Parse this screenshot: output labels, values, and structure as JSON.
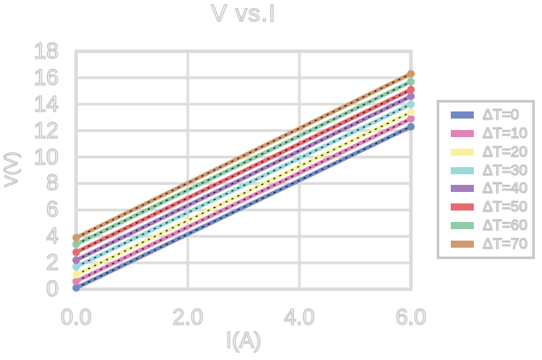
{
  "chart_data": {
    "type": "line",
    "title": "V vs.I",
    "xlabel": "I(A)",
    "ylabel": "V(V)",
    "xlim": [
      0,
      6
    ],
    "ylim": [
      0,
      18
    ],
    "x": [
      0,
      6
    ],
    "xticks": [
      {
        "value": 0,
        "label": "0.0"
      },
      {
        "value": 2,
        "label": "2.0"
      },
      {
        "value": 4,
        "label": "4.0"
      },
      {
        "value": 6,
        "label": "6.0"
      }
    ],
    "yticks": [
      {
        "value": 0,
        "label": "0"
      },
      {
        "value": 2,
        "label": "2"
      },
      {
        "value": 4,
        "label": "4"
      },
      {
        "value": 6,
        "label": "6"
      },
      {
        "value": 8,
        "label": "8"
      },
      {
        "value": 10,
        "label": "10"
      },
      {
        "value": 12,
        "label": "12"
      },
      {
        "value": 14,
        "label": "14"
      },
      {
        "value": 16,
        "label": "16"
      },
      {
        "value": 18,
        "label": "18"
      }
    ],
    "grid": true,
    "legend_position": "right-outside",
    "marker": "circle-endpoints",
    "trendline_style": "black dotted overlay on each series",
    "series": [
      {
        "name": "ΔT=0",
        "color": "#7289C4",
        "values": [
          0.1,
          12.3
        ]
      },
      {
        "name": "ΔT=10",
        "color": "#E283B8",
        "values": [
          0.6,
          12.9
        ]
      },
      {
        "name": "ΔT=20",
        "color": "#F7F2A0",
        "values": [
          1.1,
          13.4
        ]
      },
      {
        "name": "ΔT=30",
        "color": "#98D9DC",
        "values": [
          1.7,
          14.0
        ]
      },
      {
        "name": "ΔT=40",
        "color": "#A67CC0",
        "values": [
          2.2,
          14.6
        ]
      },
      {
        "name": "ΔT=50",
        "color": "#E8696F",
        "values": [
          2.8,
          15.1
        ]
      },
      {
        "name": "ΔT=60",
        "color": "#8CCCA6",
        "values": [
          3.4,
          15.7
        ]
      },
      {
        "name": "ΔT=70",
        "color": "#D2996B",
        "values": [
          3.9,
          16.3
        ]
      }
    ],
    "colors": {
      "grid": "#DCDCDC",
      "frame": "#DCDCDC",
      "legend_border": "#C9C9C9",
      "text_outline": "#C4C4C4",
      "trendline": "#1A1A1A",
      "background": "#FFFFFF"
    }
  }
}
